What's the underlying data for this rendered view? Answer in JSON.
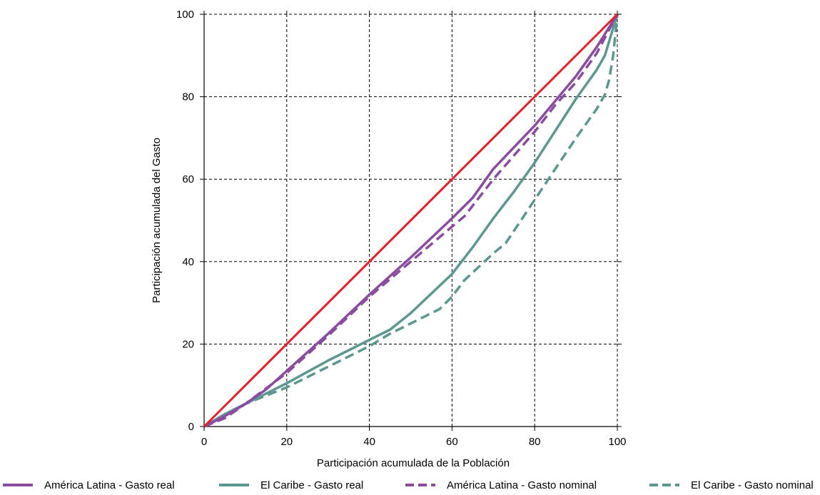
{
  "chart_data": {
    "type": "line",
    "title": "",
    "xlabel": "Participación acumulada de la Población",
    "ylabel": "Participación acumulada del Gasto",
    "xlim": [
      0,
      100
    ],
    "ylim": [
      0,
      100
    ],
    "xticks": [
      "0",
      "20",
      "40",
      "60",
      "80",
      "100"
    ],
    "yticks": [
      "0",
      "20",
      "40",
      "60",
      "80",
      "100"
    ],
    "grid": "dashed",
    "legend_position": "bottom",
    "series": [
      {
        "name": "",
        "color": "#ee1c25",
        "dash": "solid",
        "x": [
          0,
          100
        ],
        "y": [
          0,
          100
        ]
      },
      {
        "name": "América Latina - Gasto real",
        "color": "#8a4ba1",
        "dash": "solid",
        "x": [
          0,
          5,
          10,
          15,
          20,
          30,
          40,
          50,
          60,
          65,
          70,
          80,
          90,
          95,
          100
        ],
        "y": [
          0,
          2.5,
          5.5,
          9,
          13.5,
          22.5,
          32,
          41,
          50.5,
          55.5,
          62.5,
          73,
          85,
          92,
          100
        ]
      },
      {
        "name": "El Caribe - Gasto real",
        "color": "#5a9890",
        "dash": "solid",
        "x": [
          0,
          5,
          10,
          20,
          30,
          40,
          45,
          50,
          60,
          65,
          70,
          75,
          80,
          90,
          95,
          97,
          100
        ],
        "y": [
          0,
          3,
          5.5,
          10.5,
          16,
          21,
          23.5,
          27.5,
          37,
          43.5,
          50.5,
          57,
          64,
          79.5,
          86.5,
          90,
          100
        ]
      },
      {
        "name": "América Latina - Gasto nominal",
        "color": "#8a4ba1",
        "dash": "dashed",
        "x": [
          0,
          5,
          10,
          20,
          30,
          40,
          50,
          60,
          63,
          70,
          80,
          85,
          90,
          95,
          100
        ],
        "y": [
          0,
          2,
          5.5,
          13,
          22,
          31.5,
          40,
          48.5,
          51,
          60,
          71.5,
          78,
          83.5,
          90.5,
          100
        ]
      },
      {
        "name": "El Caribe - Gasto nominal",
        "color": "#5a9890",
        "dash": "dashed",
        "x": [
          0,
          5,
          10,
          20,
          30,
          40,
          45,
          50,
          57,
          60,
          63,
          70,
          73,
          80,
          85,
          90,
          95,
          97,
          98,
          99,
          100
        ],
        "y": [
          0,
          3,
          5.5,
          9.5,
          14.5,
          19.5,
          22.5,
          25,
          28.5,
          31.5,
          35.5,
          42,
          44.5,
          55,
          62.5,
          70,
          77,
          80.5,
          84,
          90,
          100
        ]
      }
    ]
  }
}
